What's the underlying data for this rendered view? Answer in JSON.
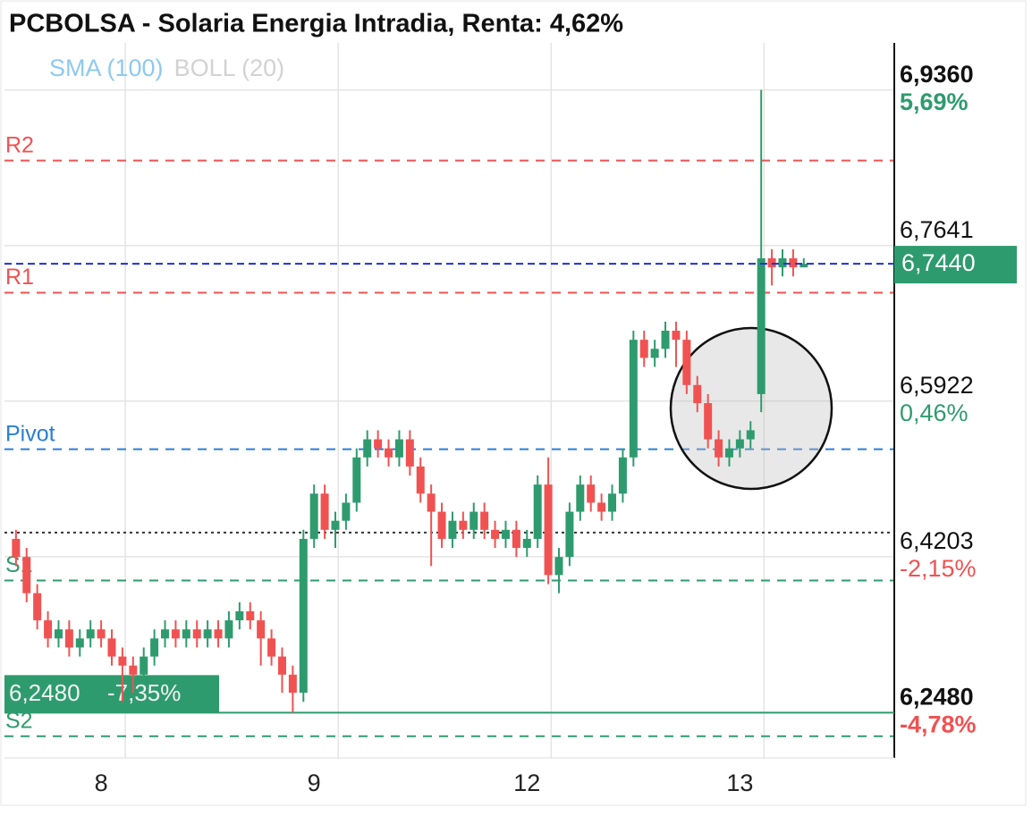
{
  "chart_data": {
    "type": "candlestick",
    "title": "PCBOLSA - Solaria Energia Intradia, Renta: 4,62%",
    "legend": [
      {
        "label": "SMA (100)",
        "color": "#8ec9ef"
      },
      {
        "label": "BOLL (20)",
        "color": "#d2d2d2"
      }
    ],
    "up_color": "#2e9b6e",
    "down_color": "#f05252",
    "categories": [
      null,
      null,
      null,
      null,
      null,
      null,
      null,
      null,
      "8",
      null,
      null,
      null,
      null,
      null,
      null,
      null,
      null,
      null,
      null,
      null,
      null,
      null,
      null,
      null,
      null,
      null,
      null,
      null,
      "9",
      null,
      null,
      null,
      null,
      null,
      null,
      null,
      null,
      null,
      null,
      null,
      null,
      null,
      null,
      null,
      null,
      null,
      null,
      null,
      "12",
      null,
      null,
      null,
      null,
      null,
      null,
      null,
      null,
      null,
      null,
      null,
      null,
      null,
      null,
      null,
      null,
      null,
      null,
      null,
      "13",
      null,
      null,
      null,
      null,
      null,
      null
    ],
    "open": [
      6.44,
      6.42,
      6.38,
      6.35,
      6.33,
      6.34,
      6.32,
      6.33,
      6.34,
      6.33,
      6.31,
      6.3,
      6.29,
      6.31,
      6.33,
      6.34,
      6.33,
      6.34,
      6.33,
      6.34,
      6.33,
      6.35,
      6.36,
      6.35,
      6.33,
      6.31,
      6.29,
      6.27,
      6.44,
      6.49,
      6.45,
      6.46,
      6.48,
      6.53,
      6.55,
      6.54,
      6.53,
      6.55,
      6.52,
      6.49,
      6.47,
      6.44,
      6.46,
      6.45,
      6.47,
      6.45,
      6.44,
      6.45,
      6.43,
      6.44,
      6.5,
      6.4,
      6.42,
      6.47,
      6.5,
      6.48,
      6.47,
      6.49,
      6.53,
      6.66,
      6.64,
      6.65,
      6.67,
      6.66,
      6.61,
      6.59,
      6.55,
      6.53,
      6.54,
      6.55,
      6.6,
      6.75,
      6.74,
      6.75,
      6.74
    ],
    "high": [
      6.45,
      6.43,
      6.39,
      6.36,
      6.35,
      6.35,
      6.34,
      6.35,
      6.35,
      6.34,
      6.32,
      6.31,
      6.32,
      6.34,
      6.35,
      6.35,
      6.35,
      6.35,
      6.35,
      6.35,
      6.36,
      6.37,
      6.37,
      6.36,
      6.34,
      6.32,
      6.3,
      6.45,
      6.5,
      6.5,
      6.47,
      6.49,
      6.54,
      6.56,
      6.56,
      6.55,
      6.56,
      6.56,
      6.53,
      6.5,
      6.48,
      6.47,
      6.47,
      6.48,
      6.48,
      6.46,
      6.46,
      6.46,
      6.45,
      6.51,
      6.53,
      6.43,
      6.48,
      6.51,
      6.51,
      6.49,
      6.5,
      6.54,
      6.67,
      6.67,
      6.66,
      6.68,
      6.68,
      6.67,
      6.62,
      6.6,
      6.56,
      6.55,
      6.56,
      6.57,
      6.936,
      6.76,
      6.76,
      6.76,
      6.75
    ],
    "low": [
      6.41,
      6.37,
      6.34,
      6.32,
      6.32,
      6.31,
      6.31,
      6.32,
      6.32,
      6.3,
      6.26,
      6.27,
      6.28,
      6.3,
      6.32,
      6.32,
      6.32,
      6.32,
      6.32,
      6.32,
      6.32,
      6.34,
      6.34,
      6.3,
      6.3,
      6.27,
      6.248,
      6.26,
      6.43,
      6.44,
      6.43,
      6.45,
      6.47,
      6.52,
      6.53,
      6.52,
      6.52,
      6.51,
      6.48,
      6.41,
      6.43,
      6.43,
      6.44,
      6.44,
      6.44,
      6.43,
      6.43,
      6.42,
      6.42,
      6.43,
      6.39,
      6.38,
      6.41,
      6.46,
      6.47,
      6.46,
      6.46,
      6.48,
      6.52,
      6.63,
      6.63,
      6.64,
      6.63,
      6.6,
      6.58,
      6.54,
      6.52,
      6.52,
      6.53,
      6.54,
      6.58,
      6.72,
      6.73,
      6.73,
      6.74
    ],
    "close": [
      6.42,
      6.38,
      6.35,
      6.33,
      6.34,
      6.32,
      6.33,
      6.34,
      6.33,
      6.31,
      6.3,
      6.29,
      6.31,
      6.33,
      6.34,
      6.33,
      6.34,
      6.33,
      6.34,
      6.33,
      6.35,
      6.36,
      6.35,
      6.33,
      6.31,
      6.29,
      6.27,
      6.44,
      6.49,
      6.45,
      6.46,
      6.48,
      6.53,
      6.55,
      6.54,
      6.53,
      6.55,
      6.52,
      6.49,
      6.47,
      6.44,
      6.46,
      6.45,
      6.47,
      6.45,
      6.44,
      6.45,
      6.43,
      6.44,
      6.5,
      6.4,
      6.42,
      6.47,
      6.5,
      6.48,
      6.47,
      6.49,
      6.53,
      6.66,
      6.64,
      6.65,
      6.67,
      6.66,
      6.61,
      6.59,
      6.55,
      6.53,
      6.54,
      6.55,
      6.56,
      6.75,
      6.74,
      6.75,
      6.74,
      6.744
    ],
    "ylim": [
      6.198,
      6.988
    ],
    "yticks": [
      {
        "value": 6.936,
        "label": "6,9360",
        "bold": true,
        "change": {
          "value": 5.69,
          "label": "5,69%"
        }
      },
      {
        "value": 6.7641,
        "label": "6,7641",
        "bold": false
      },
      {
        "value": 6.5922,
        "label": "6,5922",
        "bold": false,
        "change": {
          "value": 0.46,
          "label": "0,46%"
        }
      },
      {
        "value": 6.4203,
        "label": "6,4203",
        "bold": false,
        "change": {
          "value": -2.15,
          "label": "-2,15%"
        }
      },
      {
        "value": 6.248,
        "label": "6,2480",
        "bold": true,
        "change": {
          "value": -4.78,
          "label": "-4,78%"
        }
      }
    ],
    "grid": true,
    "levels": [
      {
        "name": "R2",
        "value": 6.858,
        "color": "#f05252"
      },
      {
        "name": "R1",
        "value": 6.712,
        "color": "#f05252"
      },
      {
        "name": "Pivot",
        "value": 6.539,
        "color": "#2a7fd4"
      },
      {
        "name": "S1",
        "value": 6.394,
        "color": "#2e9b6e"
      },
      {
        "name": "S2",
        "value": 6.222,
        "color": "#2e9b6e"
      }
    ],
    "last_price": {
      "value": 6.744,
      "label": "6,7440",
      "color": "#1f2fd0"
    },
    "reference_line": {
      "value": 6.447,
      "color": "#333333"
    },
    "low_marker": {
      "value": 6.248,
      "label": "6,2480",
      "change": {
        "value": -7.35,
        "label": "-7,35%"
      },
      "color": "#2e9b6e"
    }
  }
}
